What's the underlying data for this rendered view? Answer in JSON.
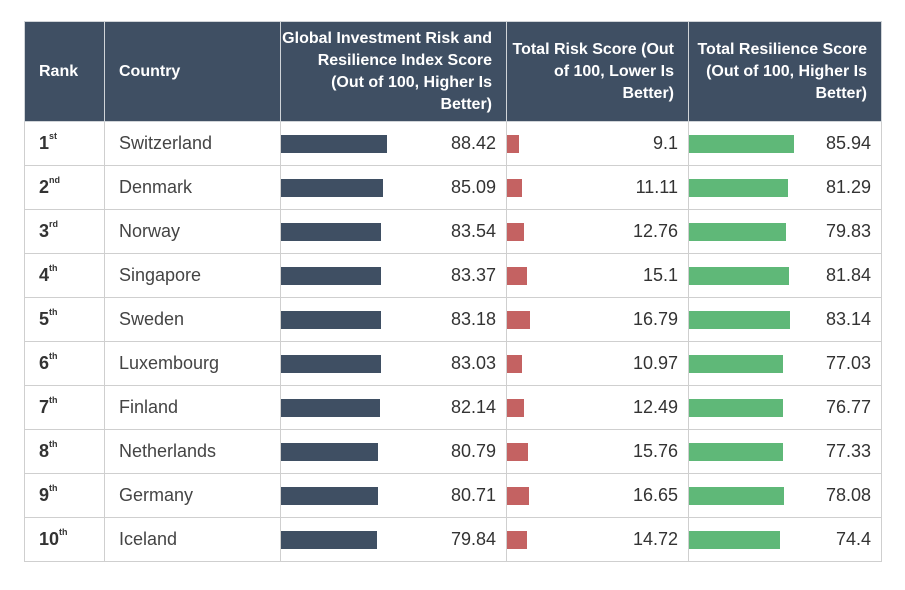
{
  "headers": {
    "rank": "Rank",
    "country": "Country",
    "index": "Global Investment Risk and Resilience Index Score (Out of 100, Higher Is Better)",
    "risk": "Total Risk Score (Out of 100, Lower Is Better)",
    "resilience": "Total Resilience Score (Out of 100, Higher Is Better)"
  },
  "colors": {
    "header_bg": "#3f4f63",
    "index_bar": "#3f4f63",
    "risk_bar": "#c46262",
    "resilience_bar": "#5fb878"
  },
  "chart_data": {
    "type": "table",
    "columns": [
      "Rank",
      "Country",
      "Global Investment Risk and Resilience Index Score (Out of 100, Higher Is Better)",
      "Total Risk Score (Out of 100, Lower Is Better)",
      "Total Resilience Score (Out of 100, Higher Is Better)"
    ],
    "rows": [
      {
        "rank": "1",
        "suffix": "st",
        "country": "Switzerland",
        "index": 88.42,
        "index_label": "88.42",
        "risk": 9.1,
        "risk_label": "9.1",
        "resilience": 85.94,
        "resilience_label": "85.94"
      },
      {
        "rank": "2",
        "suffix": "nd",
        "country": "Denmark",
        "index": 85.09,
        "index_label": "85.09",
        "risk": 11.11,
        "risk_label": "11.11",
        "resilience": 81.29,
        "resilience_label": "81.29"
      },
      {
        "rank": "3",
        "suffix": "rd",
        "country": "Norway",
        "index": 83.54,
        "index_label": "83.54",
        "risk": 12.76,
        "risk_label": "12.76",
        "resilience": 79.83,
        "resilience_label": "79.83"
      },
      {
        "rank": "4",
        "suffix": "th",
        "country": "Singapore",
        "index": 83.37,
        "index_label": "83.37",
        "risk": 15.1,
        "risk_label": "15.1",
        "resilience": 81.84,
        "resilience_label": "81.84"
      },
      {
        "rank": "5",
        "suffix": "th",
        "country": "Sweden",
        "index": 83.18,
        "index_label": "83.18",
        "risk": 16.79,
        "risk_label": "16.79",
        "resilience": 83.14,
        "resilience_label": "83.14"
      },
      {
        "rank": "6",
        "suffix": "th",
        "country": "Luxembourg",
        "index": 83.03,
        "index_label": "83.03",
        "risk": 10.97,
        "risk_label": "10.97",
        "resilience": 77.03,
        "resilience_label": "77.03"
      },
      {
        "rank": "7",
        "suffix": "th",
        "country": "Finland",
        "index": 82.14,
        "index_label": "82.14",
        "risk": 12.49,
        "risk_label": "12.49",
        "resilience": 76.77,
        "resilience_label": "76.77"
      },
      {
        "rank": "8",
        "suffix": "th",
        "country": "Netherlands",
        "index": 80.79,
        "index_label": "80.79",
        "risk": 15.76,
        "risk_label": "15.76",
        "resilience": 77.33,
        "resilience_label": "77.33"
      },
      {
        "rank": "9",
        "suffix": "th",
        "country": "Germany",
        "index": 80.71,
        "index_label": "80.71",
        "risk": 16.65,
        "risk_label": "16.65",
        "resilience": 78.08,
        "resilience_label": "78.08"
      },
      {
        "rank": "10",
        "suffix": "th",
        "country": "Iceland",
        "index": 79.84,
        "index_label": "79.84",
        "risk": 14.72,
        "risk_label": "14.72",
        "resilience": 74.4,
        "resilience_label": "74.4"
      }
    ]
  }
}
